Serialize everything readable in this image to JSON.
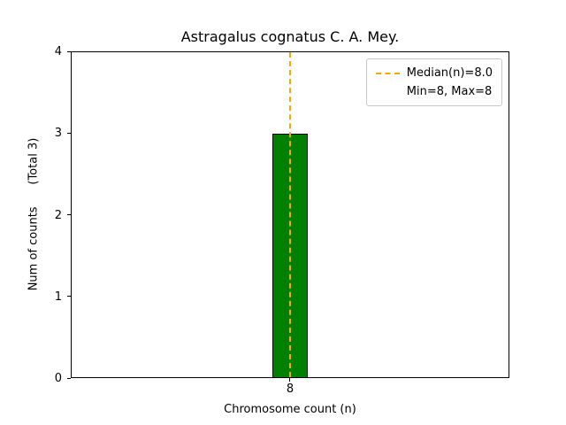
{
  "chart_data": {
    "type": "bar",
    "title": "Astragalus cognatus C. A. Mey.",
    "xlabel": "Chromosome count (n)",
    "ylabel": "Num of counts      (Total 3)",
    "total_counts": 3,
    "categories": [
      "8"
    ],
    "values": [
      3
    ],
    "ylim": [
      0,
      4
    ],
    "yticks": [
      0,
      1,
      2,
      3,
      4
    ],
    "grid": false,
    "bar_color": "#008000",
    "bar_edge_color": "#000000",
    "median_line": {
      "x": "8",
      "value": 8.0,
      "color": "#FFA500",
      "style": "dashed"
    },
    "legend": {
      "position": "upper-right",
      "entries": [
        {
          "label": "Median(n)=8.0",
          "marker": "dashed-line",
          "color": "#FFA500"
        },
        {
          "label": "Min=8, Max=8",
          "marker": "none"
        }
      ]
    }
  }
}
